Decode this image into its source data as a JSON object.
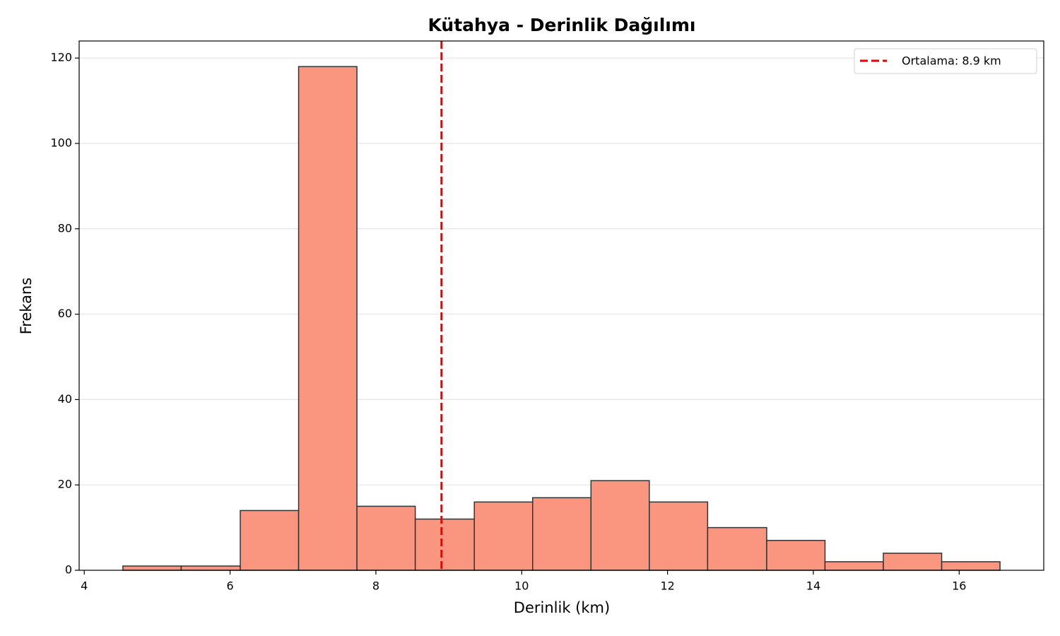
{
  "chart_data": {
    "type": "histogram",
    "title": "Kütahya - Derinlik Dağılımı",
    "x_label": "Derinlik (km)",
    "y_label": "Frekans",
    "bins": [
      4.53,
      5.33,
      6.14,
      6.94,
      7.74,
      8.54,
      9.35,
      10.15,
      10.95,
      11.75,
      12.55,
      13.36,
      14.16,
      14.96,
      15.76,
      16.56
    ],
    "values": [
      1,
      1,
      14,
      118,
      15,
      12,
      16,
      17,
      21,
      16,
      10,
      7,
      2,
      4,
      2
    ],
    "color": "#fa9580",
    "edgecolor": "#333333",
    "xlim": [
      3.93,
      17.16
    ],
    "ylim": [
      0,
      124
    ],
    "xticks": [
      4,
      6,
      8,
      10,
      12,
      14,
      16
    ],
    "yticks": [
      0,
      20,
      40,
      60,
      80,
      100,
      120
    ],
    "grid": true,
    "legend": "upper right",
    "mean_line": {
      "value": 8.9,
      "label": "Ortalama: 8.9 km",
      "color": "#ee0000"
    }
  }
}
